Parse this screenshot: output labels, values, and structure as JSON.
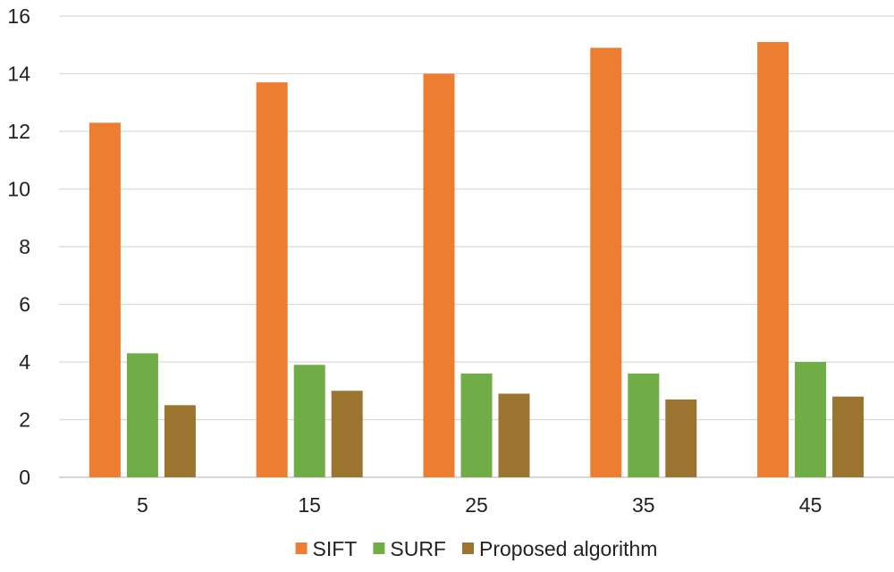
{
  "chart_data": {
    "type": "bar",
    "title": "",
    "xlabel": "",
    "ylabel": "",
    "categories": [
      "5",
      "15",
      "25",
      "35",
      "45"
    ],
    "ylim": [
      0,
      16
    ],
    "yticks": [
      0,
      2,
      4,
      6,
      8,
      10,
      12,
      14,
      16
    ],
    "grid": true,
    "legend_position": "bottom",
    "series": [
      {
        "name": "SIFT",
        "color": "#ED7D31",
        "values": [
          12.3,
          13.7,
          14.0,
          14.9,
          15.1
        ]
      },
      {
        "name": "SURF",
        "color": "#70AD47",
        "values": [
          4.3,
          3.9,
          3.6,
          3.6,
          4.0
        ]
      },
      {
        "name": "Proposed algorithm",
        "color": "#9B7530",
        "values": [
          2.5,
          3.0,
          2.9,
          2.7,
          2.8
        ]
      }
    ]
  }
}
